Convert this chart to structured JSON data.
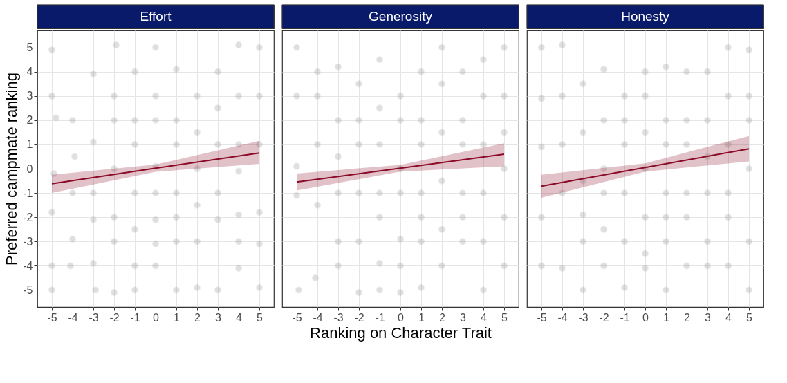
{
  "chart_data": [
    {
      "type": "scatter",
      "title": "Effort",
      "ylabel": "Preferred campmate ranking",
      "xlim": [
        -5.7,
        5.7
      ],
      "ylim": [
        -5.7,
        5.7
      ],
      "xticks": [
        -5,
        -4,
        -3,
        -2,
        -1,
        0,
        1,
        2,
        3,
        4,
        5
      ],
      "yticks": [
        -5,
        -4,
        -3,
        -2,
        -1,
        0,
        1,
        2,
        3,
        4,
        5
      ],
      "grid": true,
      "series": [
        {
          "type": "scatter",
          "color": "#999999",
          "x": [
            -5,
            -5,
            -5,
            -5,
            -5,
            -4.8,
            -4.9,
            -4,
            -4,
            -4,
            -4.1,
            -3.9,
            -3,
            -3,
            -3,
            -3,
            -3,
            -2.9,
            -2,
            -2,
            -2,
            -2,
            -2,
            -2,
            -1.9,
            -1,
            -1,
            -1,
            -1,
            -1,
            -1,
            -1,
            0,
            0,
            0,
            0,
            0,
            0,
            0,
            0,
            1,
            1,
            1,
            1,
            1,
            1,
            1,
            2,
            2,
            2,
            2,
            2,
            2,
            3,
            3,
            3,
            3,
            3,
            3,
            4,
            4,
            4,
            4,
            4,
            4,
            4,
            5,
            5,
            5,
            5,
            5,
            5
          ],
          "values": [
            4.9,
            3,
            -1.8,
            -4,
            -5,
            2.1,
            -0.2,
            2,
            -1,
            -2.9,
            -4,
            0.5,
            3.9,
            1.1,
            -1,
            -2.1,
            -3.9,
            -5,
            3,
            2,
            0,
            -2,
            -3,
            -5.1,
            5.1,
            4,
            2,
            1,
            -1,
            -2.5,
            -4,
            -5,
            5,
            3,
            2,
            0.1,
            -1,
            -2.1,
            -3.1,
            -4,
            4.1,
            2,
            1,
            -1,
            -2,
            -3,
            -5,
            3,
            1.5,
            0,
            -1.5,
            -3,
            -4.9,
            4,
            2.5,
            1,
            -1,
            -2.1,
            -5,
            5.1,
            3,
            1,
            -0.1,
            -1.9,
            -3,
            -4.1,
            5,
            3,
            1,
            -1.8,
            -3.1,
            -4.9
          ]
        },
        {
          "type": "line",
          "color": "#8b0a26",
          "x": [
            -5,
            0,
            5
          ],
          "values": [
            -0.62,
            0.02,
            0.65
          ],
          "lower": [
            -1.0,
            -0.13,
            0.2
          ],
          "upper": [
            -0.25,
            0.17,
            1.15
          ]
        }
      ]
    },
    {
      "type": "scatter",
      "title": "Generosity",
      "xlabel": "Ranking on Character Trait",
      "xlim": [
        -5.7,
        5.7
      ],
      "ylim": [
        -5.7,
        5.7
      ],
      "xticks": [
        -5,
        -4,
        -3,
        -2,
        -1,
        0,
        1,
        2,
        3,
        4,
        5
      ],
      "yticks": [
        -5,
        -4,
        -3,
        -2,
        -1,
        0,
        1,
        2,
        3,
        4,
        5
      ],
      "grid": true,
      "tick_labels": "x",
      "series": [
        {
          "type": "scatter",
          "color": "#999999",
          "x": [
            -5,
            -5,
            -5,
            -5,
            -4.9,
            -4,
            -4,
            -4,
            -4,
            -4.1,
            -3,
            -3,
            -3,
            -3,
            -3,
            -3,
            -2,
            -2,
            -2,
            -2,
            -2,
            -2,
            -1,
            -1,
            -1,
            -1,
            -1,
            -1,
            -1,
            0,
            0,
            0,
            0,
            0,
            0,
            0,
            1,
            1,
            1,
            1,
            1,
            1,
            1,
            2,
            2,
            2,
            2,
            2,
            2,
            3,
            3,
            3,
            3,
            3,
            3,
            4,
            4,
            4,
            4,
            4,
            4,
            5,
            5,
            5,
            5,
            5,
            5
          ],
          "values": [
            5,
            3,
            0.1,
            -1.1,
            -5,
            4,
            3,
            1,
            -1.5,
            -4.5,
            4.2,
            2,
            0.5,
            -1,
            -3,
            -4,
            3.5,
            2,
            1,
            -1,
            -3,
            -5.1,
            4.5,
            2.5,
            1,
            -1,
            -2,
            -3.9,
            -5,
            3,
            2,
            0,
            -1,
            -2.9,
            -4,
            -5.1,
            4,
            2,
            1,
            -1,
            -2,
            -3,
            -4.9,
            5,
            3.5,
            1.5,
            -0.5,
            -2.5,
            -4,
            4,
            2,
            1,
            -1,
            -2,
            -3,
            4.5,
            3,
            1,
            -1,
            -3,
            -5,
            5,
            3,
            1.5,
            0,
            -2,
            -4
          ]
        },
        {
          "type": "line",
          "color": "#8b0a26",
          "x": [
            -5,
            0,
            5
          ],
          "values": [
            -0.55,
            0.02,
            0.6
          ],
          "lower": [
            -0.9,
            -0.12,
            0.1
          ],
          "upper": [
            -0.2,
            0.16,
            1.05
          ]
        }
      ]
    },
    {
      "type": "scatter",
      "title": "Honesty",
      "xlim": [
        -5.7,
        5.7
      ],
      "ylim": [
        -5.7,
        5.7
      ],
      "xticks": [
        -5,
        -4,
        -3,
        -2,
        -1,
        0,
        1,
        2,
        3,
        4,
        5
      ],
      "yticks": [
        -5,
        -4,
        -3,
        -2,
        -1,
        0,
        1,
        2,
        3,
        4,
        5
      ],
      "grid": true,
      "tick_labels": "x",
      "series": [
        {
          "type": "scatter",
          "color": "#999999",
          "x": [
            -5,
            -5,
            -5,
            -5,
            -5,
            -4,
            -4,
            -4,
            -4,
            -4,
            -3,
            -3,
            -3,
            -3,
            -3,
            -3,
            -2,
            -2,
            -2,
            -2,
            -2,
            -2,
            -1,
            -1,
            -1,
            -1,
            -1,
            -1,
            0,
            0,
            0,
            0,
            0,
            0,
            0,
            1,
            1,
            1,
            1,
            1,
            1,
            1,
            2,
            2,
            2,
            2,
            2,
            2,
            3,
            3,
            3,
            3,
            3,
            3,
            4,
            4,
            4,
            4,
            4,
            4,
            5,
            5,
            5,
            5,
            5,
            5
          ],
          "values": [
            5,
            2.9,
            0.9,
            -2,
            -4,
            5.1,
            3,
            1,
            -1,
            -4.1,
            3.5,
            1.5,
            -0.5,
            -1.9,
            -3,
            -5,
            4.1,
            2,
            0,
            -1,
            -2.5,
            -4,
            3,
            2,
            1,
            -1,
            -3,
            -4.9,
            4,
            3,
            1.5,
            0,
            -2,
            -3.5,
            -4.1,
            4.2,
            2,
            1,
            -1,
            -2,
            -3,
            -5,
            4,
            2,
            1,
            -1,
            -2,
            -4,
            4,
            2,
            0.5,
            -1,
            -3,
            -4,
            5,
            3,
            1,
            -1,
            -2,
            -4,
            4.9,
            3,
            2,
            0,
            -3,
            -5
          ]
        },
        {
          "type": "line",
          "color": "#8b0a26",
          "x": [
            -5,
            0,
            5
          ],
          "values": [
            -0.72,
            0.05,
            0.82
          ],
          "lower": [
            -1.2,
            -0.12,
            0.3
          ],
          "upper": [
            -0.25,
            0.22,
            1.35
          ]
        }
      ]
    }
  ]
}
